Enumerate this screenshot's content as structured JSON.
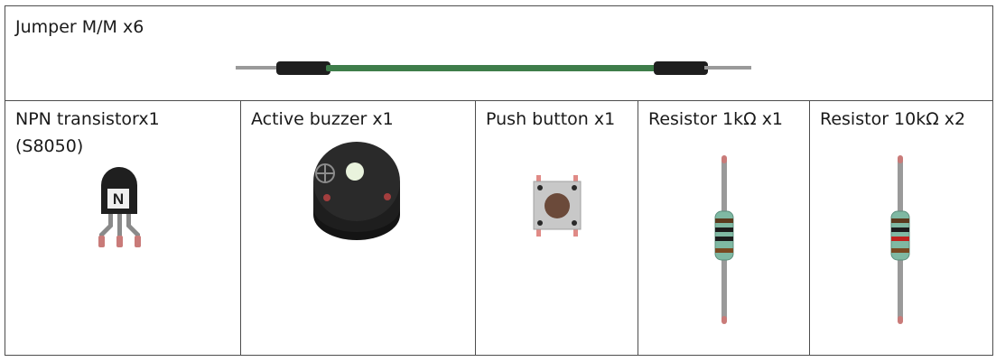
{
  "parts": [
    {
      "id": "jumper",
      "label": "Jumper M/M x6",
      "icon": "jumper-wire-icon",
      "color": "#3e7d4a"
    },
    {
      "id": "transistor",
      "label": "NPN transistorx1",
      "sublabel": "(S8050)",
      "icon": "npn-transistor-icon",
      "marking": "N"
    },
    {
      "id": "buzzer",
      "label": "Active buzzer x1",
      "icon": "active-buzzer-icon"
    },
    {
      "id": "button",
      "label": "Push button x1",
      "icon": "push-button-icon"
    },
    {
      "id": "resistor1k",
      "label": "Resistor 1kΩ  x1",
      "icon": "resistor-1k-icon",
      "bands": [
        "#5b3a1e",
        "#1c1c1c",
        "#1c1c1c",
        "#7a4a22"
      ]
    },
    {
      "id": "resistor10k",
      "label": "Resistor 10kΩ  x2",
      "icon": "resistor-10k-icon",
      "bands": [
        "#5b3a1e",
        "#1c1c1c",
        "#c0231e",
        "#7a4a22"
      ]
    }
  ]
}
